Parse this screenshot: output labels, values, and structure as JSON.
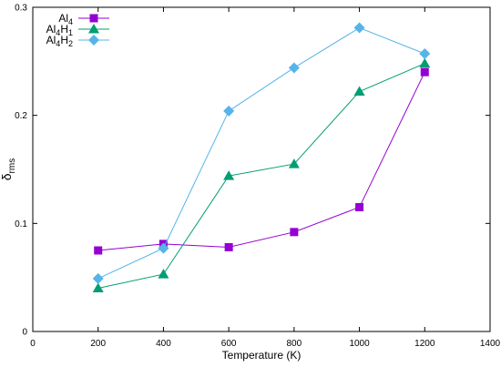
{
  "chart_data": {
    "type": "line",
    "xlabel": "Temperature (K)",
    "ylabel": {
      "base": "δ",
      "sub": "rms"
    },
    "xlim": [
      0,
      1400
    ],
    "ylim": [
      0,
      0.3
    ],
    "xticks": [
      0,
      200,
      400,
      600,
      800,
      1000,
      1200,
      1400
    ],
    "yticks": [
      0,
      0.1,
      0.2,
      0.3
    ],
    "xtick_labels": [
      "0",
      "200",
      "400",
      "600",
      "800",
      "1000",
      "1200",
      "1400"
    ],
    "ytick_labels": [
      "0",
      "0.1",
      "0.2",
      "0.3"
    ],
    "grid": false,
    "legend_position": "top-left",
    "series": [
      {
        "name_parts": [
          [
            "Al",
            ""
          ],
          [
            "4",
            "sub"
          ]
        ],
        "marker": "square",
        "color": "#9400d3",
        "x": [
          200,
          400,
          600,
          800,
          1000,
          1200
        ],
        "y": [
          0.075,
          0.081,
          0.078,
          0.092,
          0.115,
          0.24
        ]
      },
      {
        "name_parts": [
          [
            "Al",
            ""
          ],
          [
            "4",
            "sub"
          ],
          [
            "H",
            ""
          ],
          [
            "1",
            "sub"
          ]
        ],
        "marker": "triangle",
        "color": "#009e73",
        "x": [
          200,
          400,
          600,
          800,
          1000,
          1200
        ],
        "y": [
          0.04,
          0.053,
          0.144,
          0.155,
          0.222,
          0.248
        ]
      },
      {
        "name_parts": [
          [
            "Al",
            ""
          ],
          [
            "4",
            "sub"
          ],
          [
            "H",
            ""
          ],
          [
            "2",
            "sub"
          ]
        ],
        "marker": "diamond",
        "color": "#56b4e9",
        "x": [
          200,
          400,
          600,
          800,
          1000,
          1200
        ],
        "y": [
          0.049,
          0.077,
          0.204,
          0.244,
          0.281,
          0.257
        ]
      }
    ]
  }
}
